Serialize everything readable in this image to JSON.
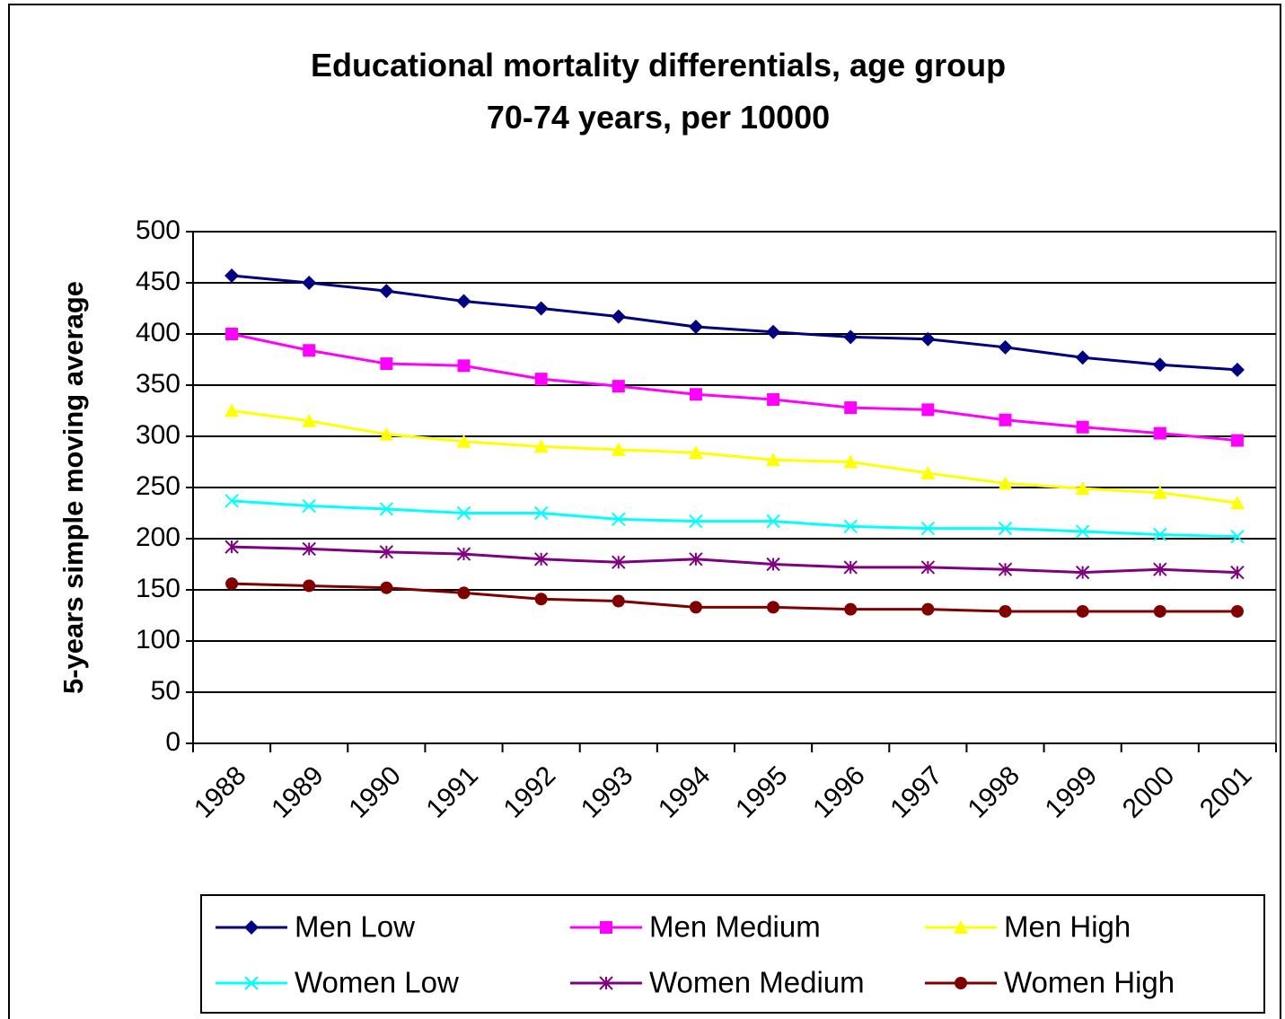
{
  "chart_data": {
    "type": "line",
    "title": "Educational mortality differentials, age group 70-74 years, per 10000",
    "ylabel": "5-years simple moving average",
    "categories": [
      "1988",
      "1989",
      "1990",
      "1991",
      "1992",
      "1993",
      "1994",
      "1995",
      "1996",
      "1997",
      "1998",
      "1999",
      "2000",
      "2001"
    ],
    "ylim": [
      0,
      500
    ],
    "yticks": [
      0,
      50,
      100,
      150,
      200,
      250,
      300,
      350,
      400,
      450,
      500
    ],
    "grid": true,
    "legend": "bottom",
    "series": [
      {
        "name": "Men Low",
        "color": "#000080",
        "marker": "diamond",
        "values": [
          457,
          450,
          442,
          432,
          425,
          417,
          407,
          402,
          397,
          395,
          387,
          377,
          370,
          365
        ]
      },
      {
        "name": "Men Medium",
        "color": "#ff00ff",
        "marker": "square",
        "values": [
          400,
          384,
          371,
          369,
          356,
          349,
          341,
          336,
          328,
          326,
          316,
          309,
          303,
          296
        ]
      },
      {
        "name": "Men High",
        "color": "#ffff00",
        "marker": "triangle",
        "values": [
          325,
          315,
          302,
          295,
          290,
          287,
          284,
          277,
          275,
          264,
          254,
          249,
          245,
          235
        ]
      },
      {
        "name": "Women Low",
        "color": "#00ffff",
        "marker": "x",
        "values": [
          237,
          232,
          229,
          225,
          225,
          219,
          217,
          217,
          212,
          210,
          210,
          207,
          204,
          202
        ]
      },
      {
        "name": "Women Medium",
        "color": "#800080",
        "marker": "star",
        "values": [
          192,
          190,
          187,
          185,
          180,
          177,
          180,
          175,
          172,
          172,
          170,
          167,
          170,
          167
        ]
      },
      {
        "name": "Women High",
        "color": "#800000",
        "marker": "circle",
        "values": [
          156,
          154,
          152,
          147,
          141,
          139,
          133,
          133,
          131,
          131,
          129,
          129,
          129,
          129
        ]
      }
    ]
  }
}
